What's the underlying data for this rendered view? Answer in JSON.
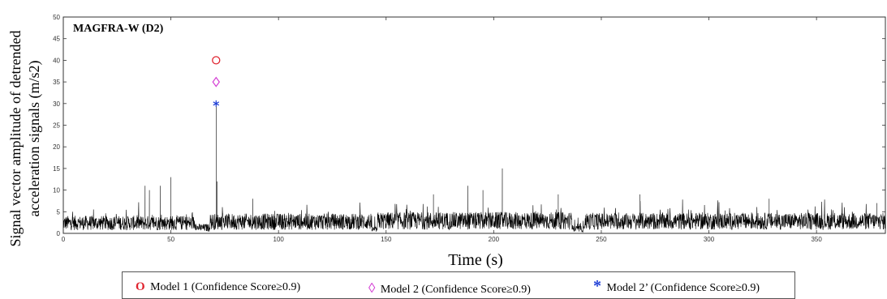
{
  "chart_data": {
    "type": "line",
    "title": "MAGFRA-W (D2)",
    "xlabel": "Time (s)",
    "ylabel": [
      "Signal vector amplitude of detrended",
      "acceleration signals (m/s2)"
    ],
    "xlim": [
      0,
      382
    ],
    "ylim": [
      0,
      50
    ],
    "xticks": [
      0,
      50,
      100,
      150,
      200,
      250,
      300,
      350
    ],
    "yticks": [
      0,
      5,
      10,
      15,
      20,
      25,
      30,
      35,
      40,
      45,
      50
    ],
    "grid": false,
    "series": [
      {
        "color": "#000000",
        "baseline_segments": [
          {
            "x": [
              0,
              62
            ],
            "mean": 2.4
          },
          {
            "x": [
              62,
              68
            ],
            "mean": 1.3
          },
          {
            "x": [
              68,
              143
            ],
            "mean": 2.7
          },
          {
            "x": [
              143,
              146
            ],
            "mean": 0.9
          },
          {
            "x": [
              146,
              237
            ],
            "mean": 2.9
          },
          {
            "x": [
              237,
              242
            ],
            "mean": 1.0
          },
          {
            "x": [
              242,
              382
            ],
            "mean": 2.8
          }
        ],
        "peaks": [
          {
            "x": 38,
            "y": 11
          },
          {
            "x": 40,
            "y": 10
          },
          {
            "x": 45,
            "y": 11
          },
          {
            "x": 50,
            "y": 13
          },
          {
            "x": 71,
            "y": 30
          },
          {
            "x": 71.5,
            "y": 12
          },
          {
            "x": 88,
            "y": 8
          },
          {
            "x": 172,
            "y": 9
          },
          {
            "x": 188,
            "y": 11
          },
          {
            "x": 195,
            "y": 10
          },
          {
            "x": 204,
            "y": 15
          },
          {
            "x": 230,
            "y": 9
          },
          {
            "x": 268,
            "y": 9
          },
          {
            "x": 328,
            "y": 8
          },
          {
            "x": 378,
            "y": 7
          }
        ]
      }
    ],
    "markers": [
      {
        "model": "Model 1",
        "symbol": "circle",
        "color": "#e0242f",
        "x": 71,
        "y": 40
      },
      {
        "model": "Model 2",
        "symbol": "diamond",
        "color": "#d43fd4",
        "x": 71,
        "y": 35
      },
      {
        "model": "Model 2’",
        "symbol": "asterisk",
        "color": "#1f3fd6",
        "x": 71,
        "y": 30
      }
    ],
    "legend": {
      "placement": "bottom",
      "items": [
        {
          "marker": "O",
          "color": "#e0242f",
          "label": "Model 1 (Confidence Score≥0.9)"
        },
        {
          "marker": "◊",
          "color": "#d43fd4",
          "label": "Model 2 (Confidence Score≥0.9)"
        },
        {
          "marker": "*",
          "color": "#1f3fd6",
          "label": "Model 2’ (Confidence Score≥0.9)"
        }
      ]
    }
  }
}
